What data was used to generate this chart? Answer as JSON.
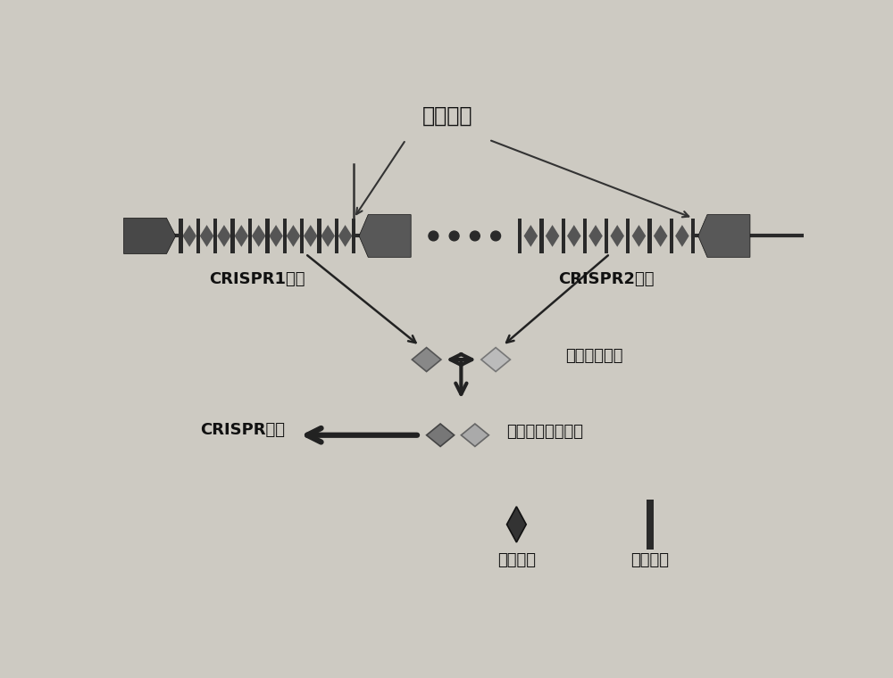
{
  "bg_color": "#cdcac2",
  "title": "前导序列",
  "label_crispr1": "CRISPR1位点",
  "label_crispr2": "CRISPR2位点",
  "label_newest_spacer": "最新间隔序列",
  "label_newest_combo": "最新间隔序列组合",
  "label_crispr_type": "CRISPR型别",
  "label_spacer": "间隔序列",
  "label_repeat": "重复序列",
  "dark_color": "#2a2a2a",
  "mid_color": "#555555",
  "penta_color": "#484848",
  "square_color": "#585858",
  "diamond1_color": "#888888",
  "diamond2_color": "#bbbbbb",
  "bot_diamond1_color": "#777777",
  "bot_diamond2_color": "#aaaaaa",
  "leg_diamond_color": "#333333",
  "arrow_color": "#222222",
  "text_color": "#111111"
}
